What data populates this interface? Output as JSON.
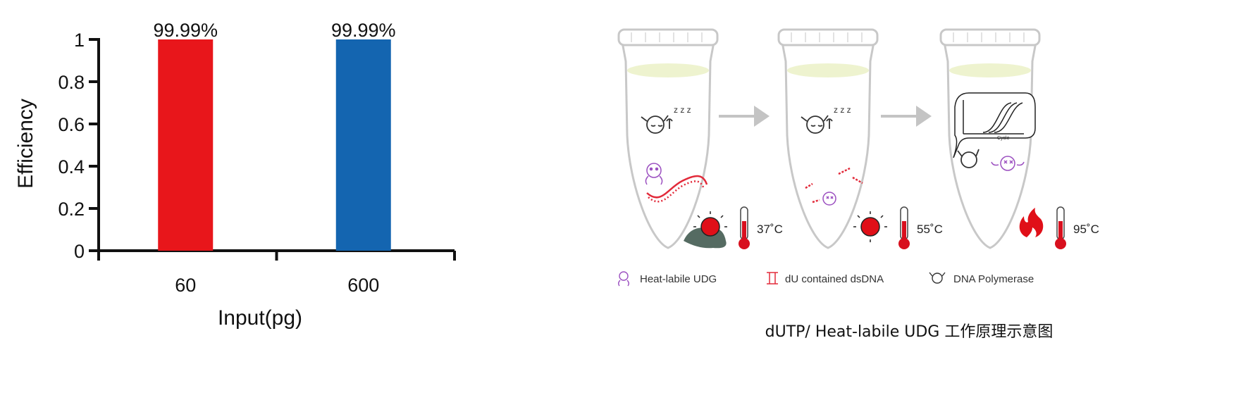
{
  "chart_data": {
    "type": "bar",
    "categories": [
      "60",
      "600"
    ],
    "values": [
      1,
      1
    ],
    "data_labels": [
      "99.99%",
      "99.99%"
    ],
    "colors": [
      "#e8161b",
      "#1465b0"
    ],
    "xlabel": "Input(pg)",
    "ylabel": "Efficiency",
    "ylim": [
      0,
      1
    ],
    "yticks": [
      "0",
      "0.2",
      "0.4",
      "0.6",
      "0.8",
      "1"
    ],
    "grid": false
  },
  "diagram": {
    "tubes": [
      {
        "temperature": "37˚C",
        "heat_icon": "sun-over-mound-icon"
      },
      {
        "temperature": "55˚C",
        "heat_icon": "sun-icon"
      },
      {
        "temperature": "95˚C",
        "heat_icon": "flame-icon"
      }
    ],
    "legend": [
      {
        "icon": "udg-enzyme-icon",
        "label": "Heat-labile UDG"
      },
      {
        "icon": "dsdna-icon",
        "label": "dU contained dsDNA"
      },
      {
        "icon": "polymerase-icon",
        "label": "DNA Polymerase"
      }
    ],
    "inset_plot_labels": {
      "x": "Cycle",
      "y": "ΔRn"
    },
    "caption": "dUTP/ Heat-labile UDG 工作原理示意图"
  }
}
